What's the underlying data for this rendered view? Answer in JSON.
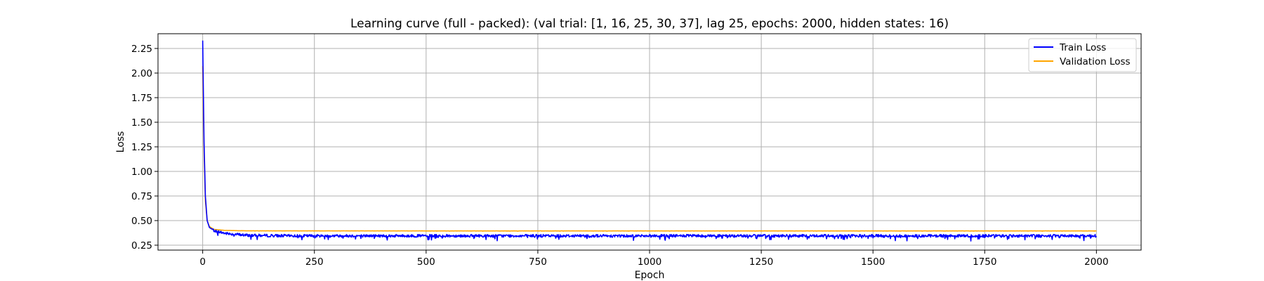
{
  "chart_data": {
    "type": "line",
    "title": "Learning curve (full - packed): (val trial: [1, 16, 25, 30, 37], lag 25, epochs: 2000, hidden states: 16)",
    "xlabel": "Epoch",
    "ylabel": "Loss",
    "xlim": [
      -100,
      2100
    ],
    "ylim": [
      0.2,
      2.4
    ],
    "xticks": [
      0,
      250,
      500,
      750,
      1000,
      1250,
      1500,
      1750,
      2000
    ],
    "yticks": [
      0.25,
      0.5,
      0.75,
      1.0,
      1.25,
      1.5,
      1.75,
      2.0,
      2.25
    ],
    "ytick_labels": [
      "0.25",
      "0.50",
      "0.75",
      "1.00",
      "1.25",
      "1.50",
      "1.75",
      "2.00",
      "2.25"
    ],
    "grid": true,
    "legend_position": "top-right",
    "series": [
      {
        "name": "Train Loss",
        "color": "#0000ff",
        "start": 2.33,
        "plateau": 0.345,
        "noise_amplitude": 0.035,
        "points": [
          [
            0,
            2.33
          ],
          [
            3,
            1.3
          ],
          [
            6,
            0.75
          ],
          [
            10,
            0.5
          ],
          [
            15,
            0.43
          ],
          [
            25,
            0.4
          ],
          [
            50,
            0.37
          ],
          [
            100,
            0.35
          ],
          [
            200,
            0.345
          ],
          [
            500,
            0.345
          ],
          [
            1000,
            0.345
          ],
          [
            1500,
            0.345
          ],
          [
            2000,
            0.345
          ]
        ]
      },
      {
        "name": "Validation Loss",
        "color": "#ffa500",
        "start": 2.07,
        "plateau": 0.395,
        "noise_amplitude": 0.002,
        "points": [
          [
            0,
            2.07
          ],
          [
            3,
            1.2
          ],
          [
            6,
            0.7
          ],
          [
            10,
            0.5
          ],
          [
            15,
            0.44
          ],
          [
            25,
            0.41
          ],
          [
            50,
            0.4
          ],
          [
            100,
            0.396
          ],
          [
            500,
            0.395
          ],
          [
            1000,
            0.395
          ],
          [
            1500,
            0.395
          ],
          [
            2000,
            0.395
          ]
        ]
      }
    ]
  }
}
